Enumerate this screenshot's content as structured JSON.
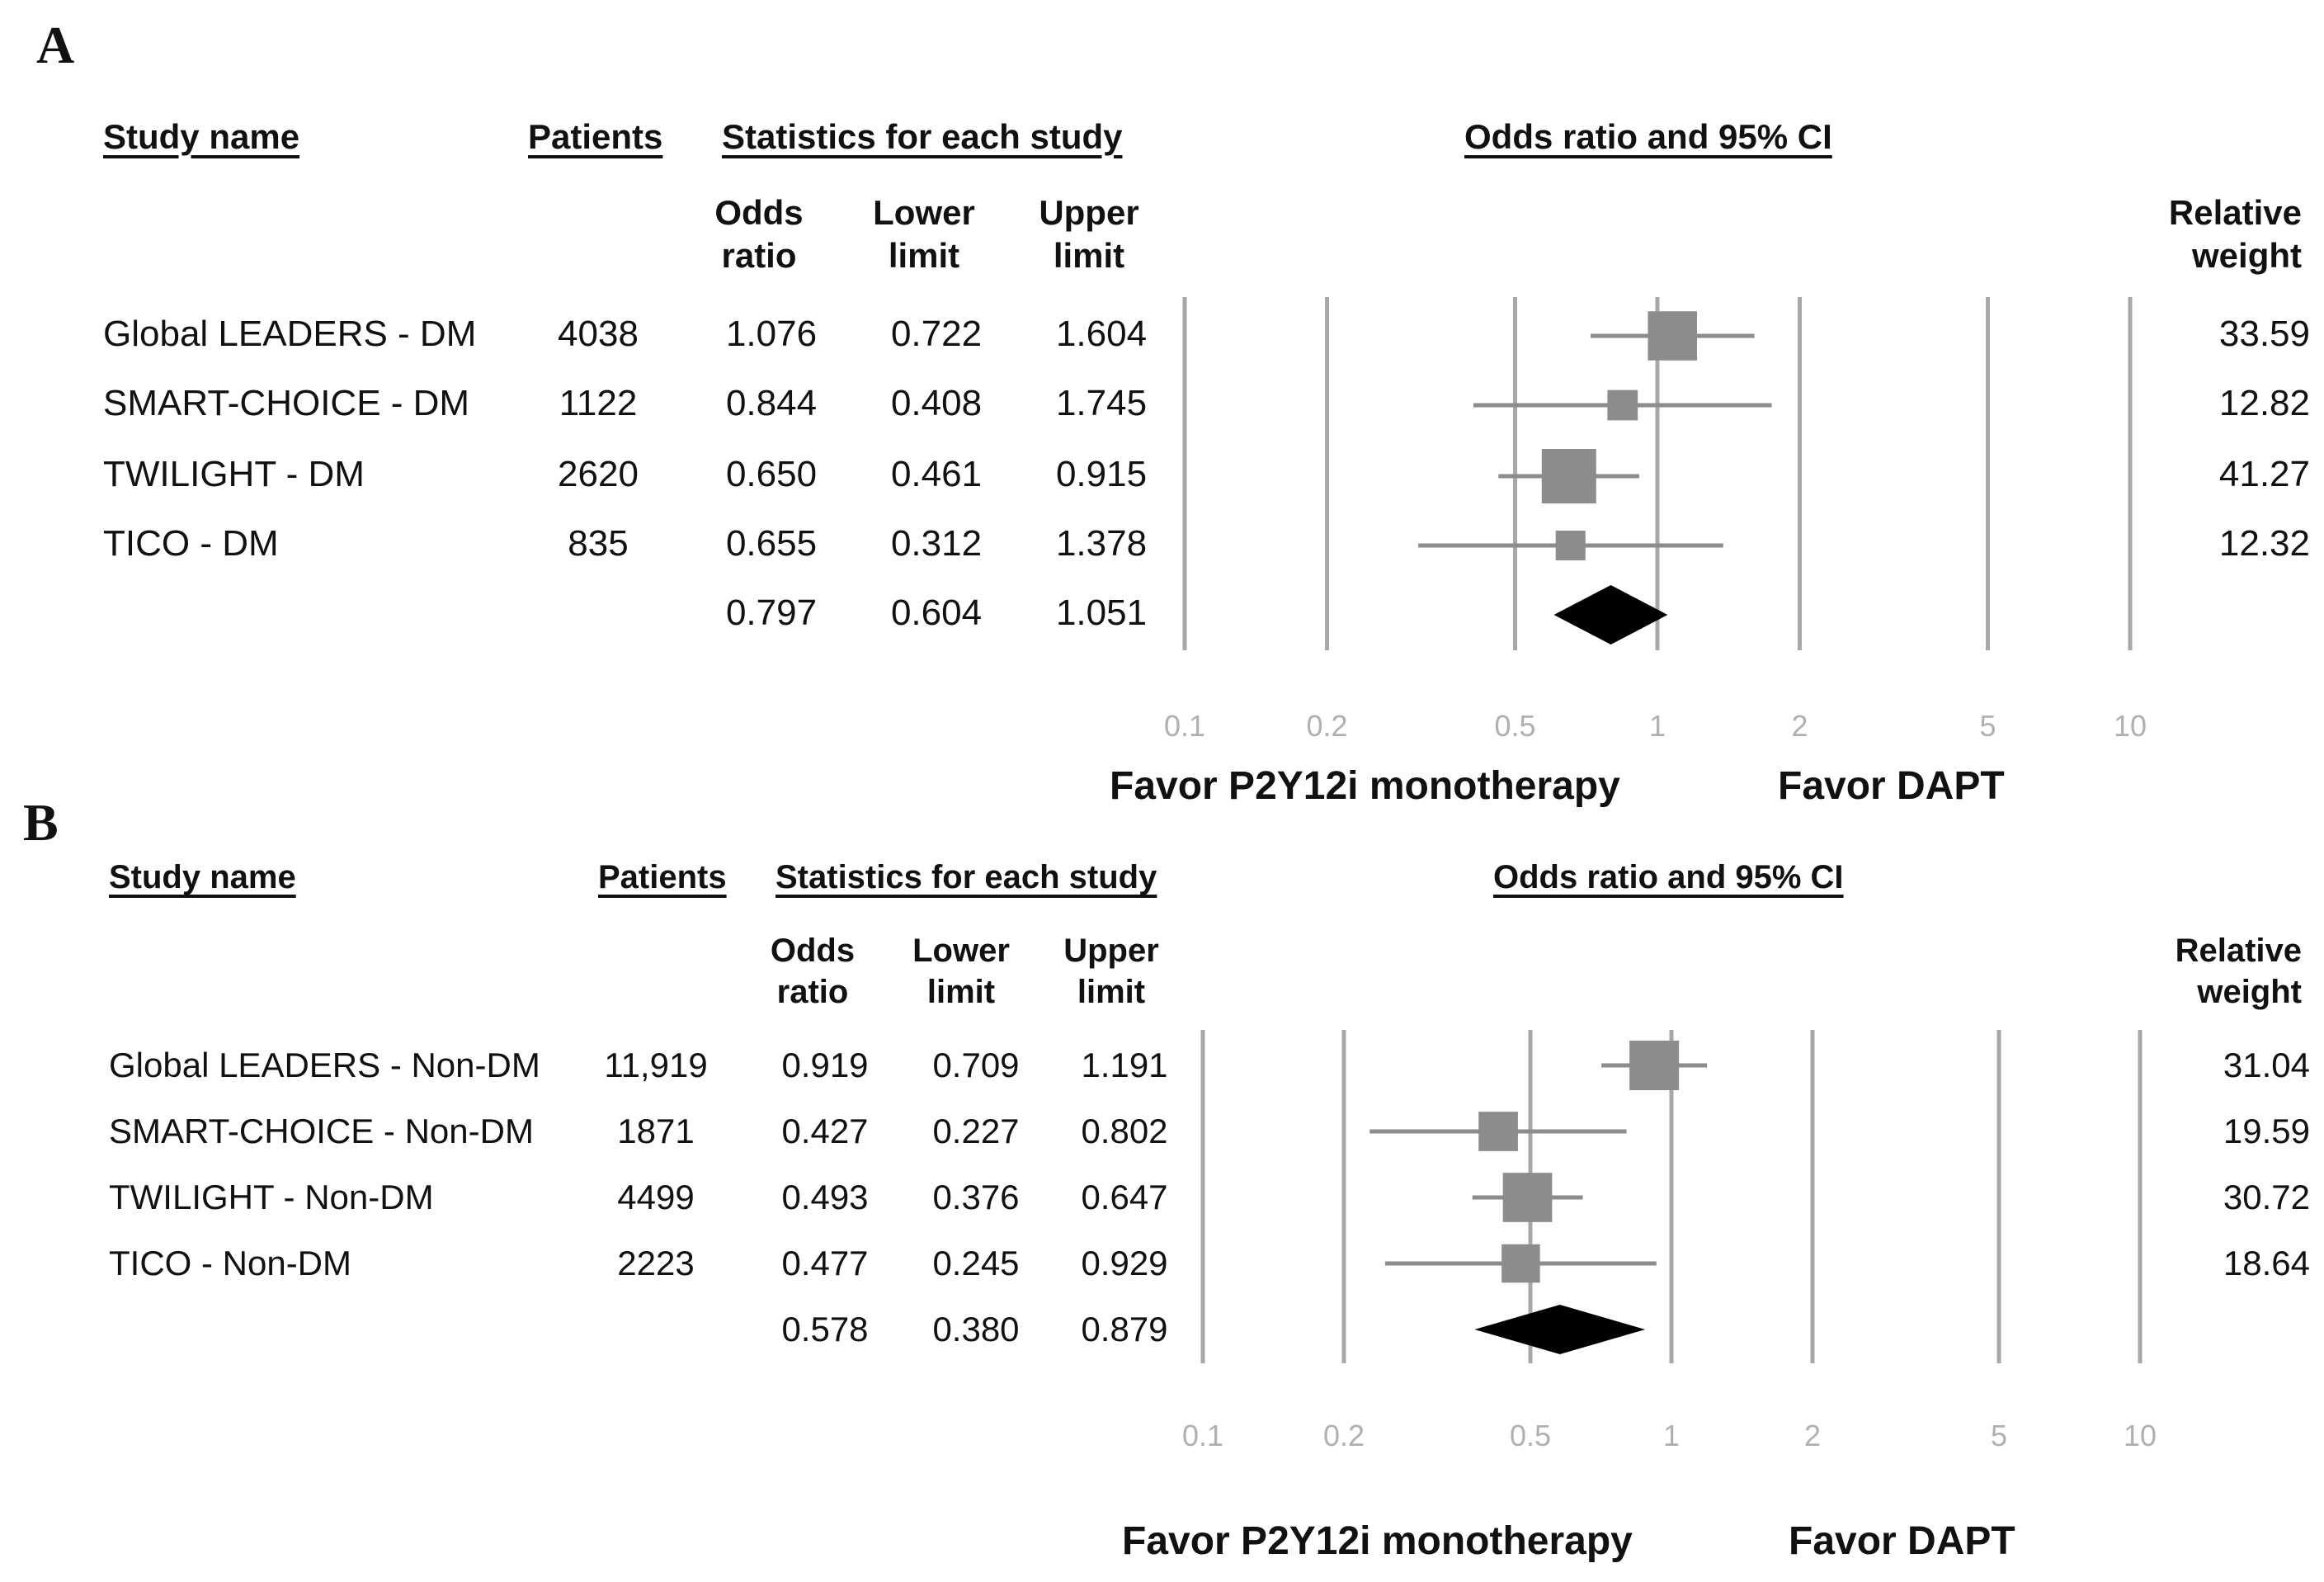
{
  "panels": [
    {
      "label": "A",
      "headers": {
        "study_name": "Study name",
        "patients": "Patients",
        "statistics": "Statistics for each study",
        "odds_ci": "Odds ratio and 95% CI",
        "odds_ratio": [
          "Odds",
          "ratio"
        ],
        "lower_limit": [
          "Lower",
          "limit"
        ],
        "upper_limit": [
          "Upper",
          "limit"
        ],
        "relative_weight": [
          "Relative",
          "weight"
        ]
      },
      "rows": [
        {
          "name": "Global LEADERS - DM",
          "patients": "4038",
          "or": "1.076",
          "lower": "0.722",
          "upper": "1.604",
          "weight": "33.59"
        },
        {
          "name": "SMART-CHOICE - DM",
          "patients": "1122",
          "or": "0.844",
          "lower": "0.408",
          "upper": "1.745",
          "weight": "12.82"
        },
        {
          "name": "TWILIGHT - DM",
          "patients": "2620",
          "or": "0.650",
          "lower": "0.461",
          "upper": "0.915",
          "weight": "41.27"
        },
        {
          "name": "TICO - DM",
          "patients": "835",
          "or": "0.655",
          "lower": "0.312",
          "upper": "1.378",
          "weight": "12.32"
        }
      ],
      "summary": {
        "or": "0.797",
        "lower": "0.604",
        "upper": "1.051"
      },
      "favor_left": "Favor P2Y12i monotherapy",
      "favor_right": "Favor DAPT"
    },
    {
      "label": "B",
      "headers": {
        "study_name": "Study name",
        "patients": "Patients",
        "statistics": "Statistics for each study",
        "odds_ci": "Odds ratio and 95% CI",
        "odds_ratio": [
          "Odds",
          "ratio"
        ],
        "lower_limit": [
          "Lower",
          "limit"
        ],
        "upper_limit": [
          "Upper",
          "limit"
        ],
        "relative_weight": [
          "Relative",
          "weight"
        ]
      },
      "rows": [
        {
          "name": "Global LEADERS  - Non-DM",
          "patients": "11,919",
          "or": "0.919",
          "lower": "0.709",
          "upper": "1.191",
          "weight": "31.04"
        },
        {
          "name": "SMART-CHOICE - Non-DM",
          "patients": "1871",
          "or": "0.427",
          "lower": "0.227",
          "upper": "0.802",
          "weight": "19.59"
        },
        {
          "name": "TWILIGHT - Non-DM",
          "patients": "4499",
          "or": "0.493",
          "lower": "0.376",
          "upper": "0.647",
          "weight": "30.72"
        },
        {
          "name": "TICO - Non-DM",
          "patients": "2223",
          "or": "0.477",
          "lower": "0.245",
          "upper": "0.929",
          "weight": "18.64"
        }
      ],
      "summary": {
        "or": "0.578",
        "lower": "0.380",
        "upper": "0.879"
      },
      "favor_left": "Favor P2Y12i monotherapy",
      "favor_right": "Favor DAPT"
    }
  ],
  "chart_data": [
    {
      "type": "forest",
      "title": "A",
      "xscale": "log",
      "xlim": [
        0.1,
        10
      ],
      "xticks": [
        0.1,
        0.2,
        0.5,
        1,
        2,
        5,
        10
      ],
      "xtick_labels": [
        "0.1",
        "0.2",
        "0.5",
        "1",
        "2",
        "5",
        "10"
      ],
      "studies": [
        "Global LEADERS - DM",
        "SMART-CHOICE - DM",
        "TWILIGHT - DM",
        "TICO - DM"
      ],
      "odds_ratio": [
        1.076,
        0.844,
        0.65,
        0.655
      ],
      "lower": [
        0.722,
        0.408,
        0.461,
        0.312
      ],
      "upper": [
        1.604,
        1.745,
        0.915,
        1.378
      ],
      "weight": [
        33.59,
        12.82,
        41.27,
        12.32
      ],
      "pooled": {
        "or": 0.797,
        "lower": 0.604,
        "upper": 1.051
      },
      "xlabel_left": "Favor P2Y12i monotherapy",
      "xlabel_right": "Favor DAPT",
      "colors": {
        "box": "#8c8c8c",
        "line": "#8c8c8c",
        "diamond": "#000000",
        "grid": "#a8a8a8"
      }
    },
    {
      "type": "forest",
      "title": "B",
      "xscale": "log",
      "xlim": [
        0.1,
        10
      ],
      "xticks": [
        0.1,
        0.2,
        0.5,
        1,
        2,
        5,
        10
      ],
      "xtick_labels": [
        "0.1",
        "0.2",
        "0.5",
        "1",
        "2",
        "5",
        "10"
      ],
      "studies": [
        "Global LEADERS  - Non-DM",
        "SMART-CHOICE - Non-DM",
        "TWILIGHT - Non-DM",
        "TICO - Non-DM"
      ],
      "odds_ratio": [
        0.919,
        0.427,
        0.493,
        0.477
      ],
      "lower": [
        0.709,
        0.227,
        0.376,
        0.245
      ],
      "upper": [
        1.191,
        0.802,
        0.647,
        0.929
      ],
      "weight": [
        31.04,
        19.59,
        30.72,
        18.64
      ],
      "pooled": {
        "or": 0.578,
        "lower": 0.38,
        "upper": 0.879
      },
      "xlabel_left": "Favor P2Y12i monotherapy",
      "xlabel_right": "Favor DAPT",
      "colors": {
        "box": "#8c8c8c",
        "line": "#8c8c8c",
        "diamond": "#000000",
        "grid": "#a8a8a8"
      }
    }
  ]
}
